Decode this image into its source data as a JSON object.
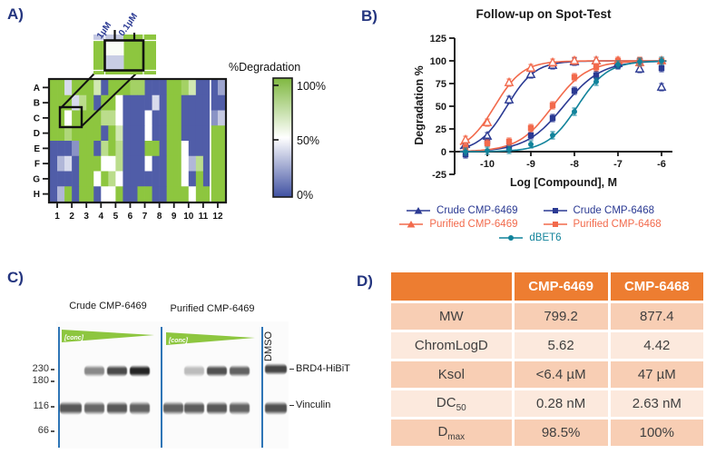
{
  "panels": {
    "a_label": "A)",
    "b_label": "B)",
    "c_label": "C)",
    "d_label": "D)"
  },
  "chart_data": [
    {
      "type": "line",
      "title": "Follow-up on Spot-Test",
      "xlabel": "Log [Compound], M",
      "ylabel": "Degradation %",
      "xlim": [
        -10.75,
        -5.75
      ],
      "ylim": [
        -25,
        125
      ],
      "xticks": [
        -10,
        -9,
        -8,
        -7,
        -6
      ],
      "yticks": [
        -25,
        0,
        25,
        50,
        75,
        100,
        125
      ],
      "grid": false,
      "legend_position": "bottom",
      "x": [
        -10.5,
        -10,
        -9.5,
        -9,
        -8.5,
        -8,
        -7.5,
        -7,
        -6.5,
        -6
      ],
      "series": [
        {
          "name": "Crude CMP-6469",
          "color": "#2b3a93",
          "marker": "triangle-open",
          "y": [
            8,
            17,
            57,
            85,
            95,
            99,
            100,
            97,
            91,
            71
          ],
          "fit": {
            "bottom": 0,
            "top": 100,
            "logec50": -9.55,
            "hill": 1.35
          }
        },
        {
          "name": "Purified CMP-6469",
          "color": "#f26a4c",
          "marker": "triangle-open",
          "y": [
            13,
            32,
            76,
            92,
            98,
            100,
            100,
            100,
            98,
            100
          ],
          "fit": {
            "bottom": 0,
            "top": 100,
            "logec50": -9.83,
            "hill": 1.35
          }
        },
        {
          "name": "Crude CMP-6468",
          "color": "#2b3a93",
          "marker": "square",
          "y": [
            -3,
            11,
            4,
            18,
            37,
            67,
            84,
            95,
            100,
            92
          ],
          "fit": {
            "bottom": 0,
            "top": 100,
            "logec50": -8.25,
            "hill": 1.0
          }
        },
        {
          "name": "Purified CMP-6468",
          "color": "#f26a4c",
          "marker": "square",
          "y": [
            5,
            9,
            11,
            26,
            51,
            82,
            93,
            100,
            100,
            100
          ],
          "fit": {
            "bottom": 0,
            "top": 100,
            "logec50": -8.5,
            "hill": 1.1
          }
        },
        {
          "name": "dBET6",
          "color": "#11839b",
          "marker": "circle",
          "y": [
            0,
            1,
            2,
            8,
            18,
            44,
            77,
            96,
            99,
            100
          ],
          "fit": {
            "bottom": 0,
            "top": 100,
            "logec50": -7.93,
            "hill": 1.25
          }
        }
      ],
      "error_bar": 4,
      "legend_rows": [
        [
          "Crude CMP-6469",
          "Crude CMP-6468"
        ],
        [
          "Purified CMP-6469",
          "Purified CMP-6468"
        ],
        [
          "dBET6"
        ]
      ]
    },
    {
      "type": "heatmap",
      "rows": [
        "A",
        "B",
        "C",
        "D",
        "E",
        "F",
        "G",
        "H"
      ],
      "cols": [
        "1",
        "2",
        "3",
        "4",
        "5",
        "6",
        "7",
        "8",
        "9",
        "10",
        "11",
        "12"
      ],
      "sub_columns": [
        "1µM",
        "0.1µM"
      ],
      "colorbar": {
        "title": "%Degradation",
        "ticks": [
          "100%",
          "50%",
          "0%"
        ]
      },
      "inset": {
        "labels": [
          "1µM",
          "0.1µM"
        ],
        "well_values": {
          "left_top": 52,
          "left_bottom": 36,
          "right": 100
        }
      },
      "colors": {
        "high": "#8dc63f",
        "mid": "#ffffff",
        "low": "#3c4b9e"
      },
      "values": [
        [
          100,
          100,
          40,
          100,
          100,
          100,
          70,
          5,
          100,
          100,
          100,
          90,
          90,
          5,
          5,
          5,
          100,
          100,
          90,
          70,
          5,
          5,
          5,
          25
        ],
        [
          100,
          100,
          100,
          40,
          80,
          100,
          5,
          100,
          100,
          50,
          5,
          5,
          5,
          5,
          40,
          5,
          100,
          100,
          5,
          5,
          5,
          5,
          5,
          5
        ],
        [
          100,
          100,
          50,
          100,
          100,
          100,
          100,
          80,
          80,
          50,
          5,
          5,
          5,
          50,
          5,
          5,
          100,
          100,
          5,
          5,
          5,
          5,
          20,
          35
        ],
        [
          100,
          100,
          85,
          100,
          100,
          100,
          100,
          5,
          100,
          70,
          5,
          5,
          5,
          50,
          5,
          5,
          100,
          100,
          5,
          5,
          5,
          5,
          100,
          100
        ],
        [
          5,
          5,
          5,
          20,
          100,
          100,
          5,
          80,
          100,
          80,
          5,
          5,
          5,
          100,
          100,
          5,
          100,
          100,
          50,
          5,
          5,
          5,
          100,
          100
        ],
        [
          5,
          30,
          40,
          5,
          100,
          100,
          100,
          50,
          50,
          80,
          5,
          5,
          5,
          50,
          5,
          5,
          100,
          100,
          50,
          30,
          80,
          5,
          100,
          100
        ],
        [
          5,
          5,
          5,
          5,
          100,
          100,
          50,
          100,
          80,
          50,
          5,
          5,
          5,
          5,
          5,
          5,
          100,
          100,
          50,
          5,
          100,
          5,
          100,
          100
        ],
        [
          5,
          30,
          100,
          5,
          100,
          100,
          5,
          50,
          50,
          100,
          5,
          5,
          100,
          100,
          5,
          5,
          100,
          100,
          100,
          50,
          100,
          100,
          100,
          100
        ]
      ]
    }
  ],
  "blot": {
    "group1_label": "Crude CMP-6469",
    "group2_label": "Purified CMP-6469",
    "dmso_label": "DMSO",
    "conc_label": "[conc]",
    "mw_markers": [
      "230",
      "180",
      "116",
      "66"
    ],
    "band_labels": [
      "BRD4-HiBiT",
      "Vinculin"
    ],
    "brd4_intensities": [
      0,
      0.5,
      0.78,
      0.95,
      0,
      0.28,
      0.75,
      0.68,
      0.8
    ],
    "vinculin_intensities": [
      0.72,
      0.65,
      0.72,
      0.68,
      0.68,
      0.7,
      0.72,
      0.68,
      0.75
    ],
    "wedge_color": "#8dc63f",
    "divider_color": "#2e75b6"
  },
  "table": {
    "header_bg": "#ed7d31",
    "columns": [
      "",
      "CMP-6469",
      "CMP-6468"
    ],
    "rows": [
      {
        "label": "MW",
        "sub": "",
        "values": [
          "799.2",
          "877.4"
        ]
      },
      {
        "label": "ChromLogD",
        "sub": "",
        "values": [
          "5.62",
          "4.42"
        ]
      },
      {
        "label": "Ksol",
        "sub": "",
        "values": [
          "<6.4 µM",
          "47 µM"
        ]
      },
      {
        "label": "DC",
        "sub": "50",
        "values": [
          "0.28 nM",
          "2.63 nM"
        ]
      },
      {
        "label": "D",
        "sub": "max",
        "values": [
          "98.5%",
          "100%"
        ]
      }
    ]
  }
}
